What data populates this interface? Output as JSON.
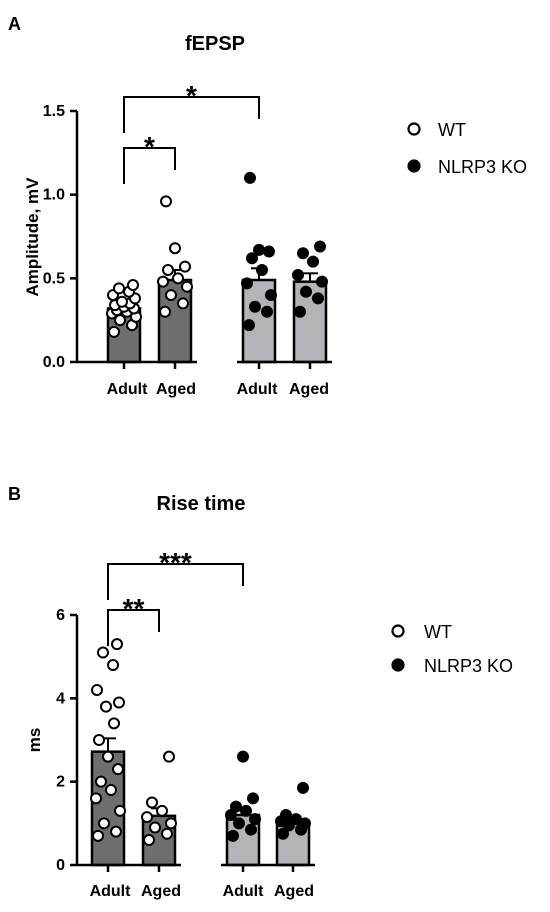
{
  "chart_data": [
    {
      "panel": "A",
      "type": "bar",
      "title": "fEPSP",
      "ylabel": "Amplitude, mV",
      "xlabel": "",
      "ylim": [
        0,
        1.5
      ],
      "yticks": [
        "0.0",
        "0.5",
        "1.0",
        "1.5"
      ],
      "yticks_values": [
        0,
        0.5,
        1.0,
        1.5
      ],
      "categories": [
        "Adult",
        "Aged",
        "Adult",
        "Aged"
      ],
      "groups": [
        "WT",
        "WT",
        "NLRP3 KO",
        "NLRP3 KO"
      ],
      "bar_colors": [
        "#6e6e6e",
        "#6e6e6e",
        "#b4b4b8",
        "#b4b4b8"
      ],
      "values": [
        0.32,
        0.49,
        0.49,
        0.48
      ],
      "sem": [
        0.02,
        0.06,
        0.07,
        0.05
      ],
      "points": [
        [
          0.18,
          0.22,
          0.25,
          0.27,
          0.29,
          0.3,
          0.31,
          0.32,
          0.33,
          0.34,
          0.35,
          0.36,
          0.38,
          0.4,
          0.42,
          0.44,
          0.46
        ],
        [
          0.3,
          0.35,
          0.4,
          0.45,
          0.48,
          0.5,
          0.55,
          0.57,
          0.68,
          0.96
        ],
        [
          0.22,
          0.3,
          0.33,
          0.4,
          0.47,
          0.55,
          0.62,
          0.66,
          0.67,
          1.1
        ],
        [
          0.3,
          0.38,
          0.42,
          0.48,
          0.52,
          0.6,
          0.65,
          0.69
        ]
      ],
      "legend": [
        "WT",
        "NLRP3 KO"
      ],
      "significance": [
        {
          "from": 0,
          "to": 1,
          "label": "*"
        },
        {
          "from": 0,
          "to": 2,
          "label": "*"
        }
      ]
    },
    {
      "panel": "B",
      "type": "bar",
      "title": "Rise time",
      "ylabel": "ms",
      "xlabel": "",
      "ylim": [
        0,
        6
      ],
      "yticks": [
        "0",
        "2",
        "4",
        "6"
      ],
      "yticks_values": [
        0,
        2,
        4,
        6
      ],
      "categories": [
        "Adult",
        "Aged",
        "Adult",
        "Aged"
      ],
      "groups": [
        "WT",
        "WT",
        "NLRP3 KO",
        "NLRP3 KO"
      ],
      "bar_colors": [
        "#6e6e6e",
        "#6e6e6e",
        "#b4b4b8",
        "#b4b4b8"
      ],
      "values": [
        2.72,
        1.18,
        1.2,
        1.02
      ],
      "sem": [
        0.32,
        0.18,
        0.14,
        0.08
      ],
      "points": [
        [
          0.7,
          0.8,
          1.0,
          1.3,
          1.6,
          1.8,
          2.0,
          2.3,
          2.6,
          3.0,
          3.4,
          3.8,
          3.9,
          4.2,
          4.8,
          5.1,
          5.3
        ],
        [
          0.6,
          0.75,
          0.9,
          1.0,
          1.15,
          1.3,
          1.5,
          2.6
        ],
        [
          0.7,
          0.85,
          1.0,
          1.1,
          1.2,
          1.3,
          1.4,
          1.6,
          2.6
        ],
        [
          0.75,
          0.85,
          0.95,
          1.0,
          1.05,
          1.1,
          1.2,
          1.85
        ]
      ],
      "legend": [
        "WT",
        "NLRP3 KO"
      ],
      "significance": [
        {
          "from": 0,
          "to": 1,
          "label": "**"
        },
        {
          "from": 0,
          "to": 2,
          "label": "***"
        }
      ]
    }
  ]
}
